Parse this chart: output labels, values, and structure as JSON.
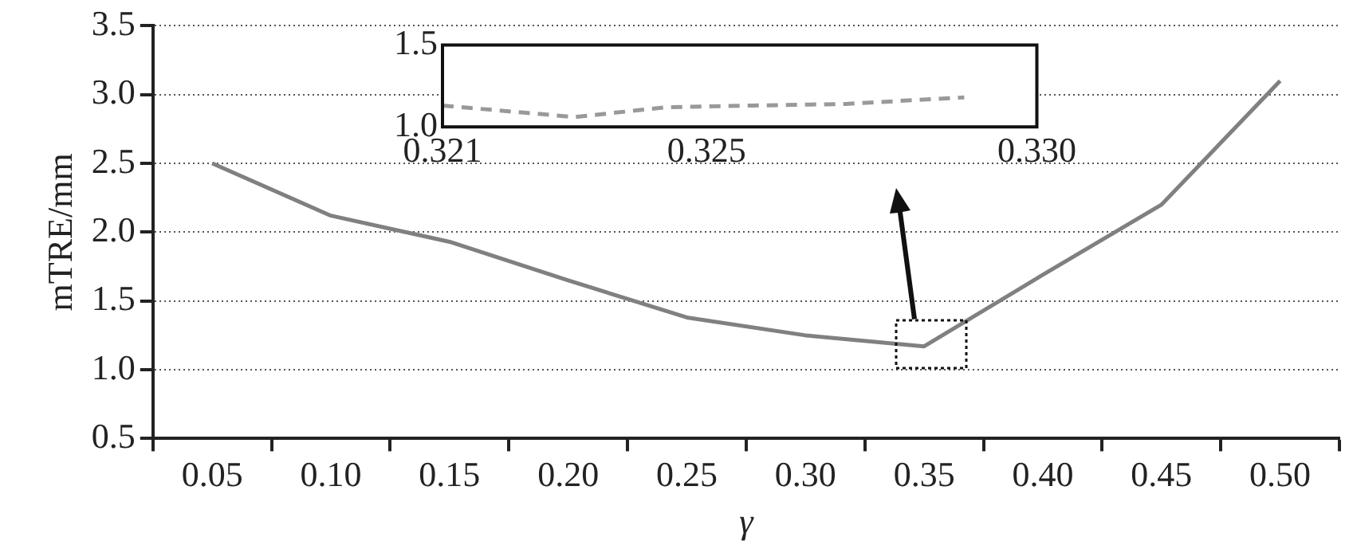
{
  "chart_data": [
    {
      "type": "line",
      "categories": [
        "0.05",
        "0.10",
        "0.15",
        "0.20",
        "0.25",
        "0.30",
        "0.35",
        "0.40",
        "0.45",
        "0.50"
      ],
      "values": [
        2.5,
        2.12,
        1.93,
        1.65,
        1.38,
        1.25,
        1.17,
        1.69,
        2.2,
        3.1
      ],
      "color": "#808080",
      "line_style": "solid",
      "ylim": [
        0.5,
        3.5
      ],
      "yticks": [
        0.5,
        {
          "value": 1,
          "label": "1.0"
        },
        1.5,
        {
          "value": 2,
          "label": "2.0"
        },
        2.5,
        {
          "value": 3,
          "label": "3.0"
        },
        3.5
      ],
      "grid": "y",
      "xlabel": "γ",
      "ylabel": "mTRE/mm"
    },
    {
      "type": "line",
      "x": [
        0.321,
        0.323,
        0.3244,
        0.3257,
        0.3271,
        0.3289
      ],
      "values": [
        1.13,
        1.06,
        1.12,
        1.13,
        1.14,
        1.18
      ],
      "color": "#999999",
      "line_style": "dashed",
      "xlim": [
        0.321,
        0.33
      ],
      "xticks": [
        0.321,
        0.325,
        {
          "value": 0.33,
          "label": "0.330"
        }
      ],
      "ylim": [
        1,
        1.5
      ],
      "yticks": [
        {
          "value": 1,
          "label": "1.0"
        },
        1.5
      ]
    }
  ]
}
